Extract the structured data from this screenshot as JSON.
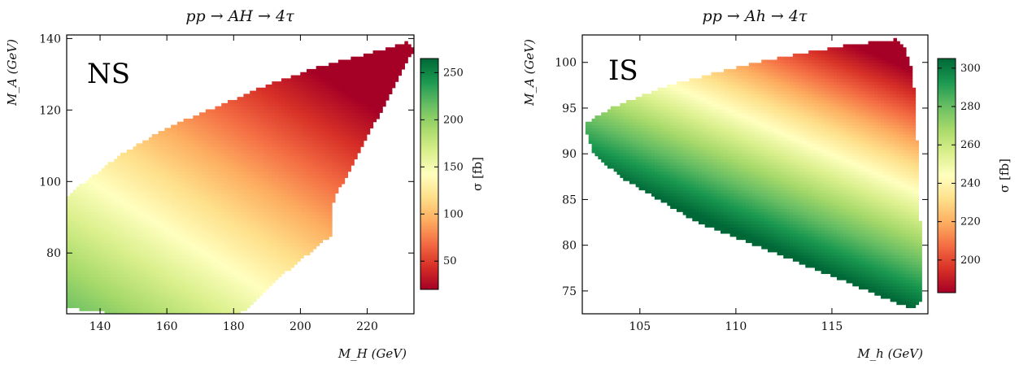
{
  "chart_data": [
    {
      "type": "heatmap",
      "title": "pp → AH → 4τ",
      "panel_label": "NS",
      "xlabel": "M_H (GeV)",
      "ylabel": "M_A (GeV)",
      "xlim": [
        130,
        234
      ],
      "ylim": [
        63,
        141
      ],
      "xticks": [
        140,
        160,
        180,
        200,
        220
      ],
      "yticks": [
        80,
        100,
        120,
        140
      ],
      "colorbar": {
        "label": "σ [fb]",
        "range": [
          20,
          265
        ],
        "ticks": [
          50,
          100,
          150,
          200,
          250
        ],
        "colormap": "RdYlGn",
        "low_color": "#a50026",
        "mid_color": "#ffffbf",
        "high_color": "#006837"
      },
      "region_outline": [
        [
          130,
          96
        ],
        [
          137,
          101
        ],
        [
          147,
          108
        ],
        [
          160,
          115
        ],
        [
          175,
          121
        ],
        [
          190,
          127
        ],
        [
          205,
          132
        ],
        [
          221,
          136
        ],
        [
          232,
          139
        ],
        [
          234,
          137
        ],
        [
          222,
          116
        ],
        [
          210,
          95
        ],
        [
          209,
          85
        ],
        [
          196,
          75
        ],
        [
          184,
          64
        ],
        [
          181,
          63
        ],
        [
          146,
          63
        ],
        [
          136,
          64
        ],
        [
          130,
          65
        ]
      ],
      "sigma_samples": [
        {
          "M_H": 132,
          "M_A": 67,
          "sigma": 260
        },
        {
          "M_H": 150,
          "M_A": 70,
          "sigma": 185
        },
        {
          "M_H": 165,
          "M_A": 72,
          "sigma": 145
        },
        {
          "M_H": 135,
          "M_A": 95,
          "sigma": 145
        },
        {
          "M_H": 160,
          "M_A": 100,
          "sigma": 100
        },
        {
          "M_H": 180,
          "M_A": 100,
          "sigma": 65
        },
        {
          "M_H": 200,
          "M_A": 110,
          "sigma": 45
        },
        {
          "M_H": 230,
          "M_A": 138,
          "sigma": 20
        }
      ]
    },
    {
      "type": "heatmap",
      "title": "pp → Ah → 4τ",
      "panel_label": "IS",
      "xlabel": "M_h (GeV)",
      "ylabel": "M_A (GeV)",
      "xlim": [
        102,
        120
      ],
      "ylim": [
        72.5,
        103
      ],
      "xticks": [
        105,
        110,
        115
      ],
      "yticks": [
        75,
        80,
        85,
        90,
        95,
        100
      ],
      "colorbar": {
        "label": "σ [fb]",
        "range": [
          183,
          305
        ],
        "ticks": [
          200,
          220,
          240,
          260,
          280,
          300
        ],
        "colormap": "RdYlGn",
        "low_color": "#a50026",
        "mid_color": "#ffffbf",
        "high_color": "#006837"
      },
      "region_outline": [
        [
          102.1,
          93.3
        ],
        [
          103.5,
          95.0
        ],
        [
          106.5,
          97.5
        ],
        [
          111,
          100
        ],
        [
          115.5,
          101.8
        ],
        [
          118.3,
          102.5
        ],
        [
          118.8,
          101.5
        ],
        [
          119.2,
          99
        ],
        [
          119.4,
          93
        ],
        [
          119.6,
          82
        ],
        [
          119.6,
          74
        ],
        [
          119.2,
          73
        ],
        [
          114,
          77.5
        ],
        [
          108,
          82.5
        ],
        [
          104,
          87.5
        ],
        [
          102.6,
          90
        ],
        [
          102.1,
          93
        ]
      ],
      "sigma_samples": [
        {
          "M_h": 102.5,
          "M_A": 93,
          "sigma": 300
        },
        {
          "M_h": 104,
          "M_A": 88,
          "sigma": 300
        },
        {
          "M_h": 106,
          "M_A": 96,
          "sigma": 245
        },
        {
          "M_h": 110,
          "M_A": 92,
          "sigma": 240
        },
        {
          "M_h": 113,
          "M_A": 100,
          "sigma": 200
        },
        {
          "M_h": 118,
          "M_A": 102,
          "sigma": 185
        },
        {
          "M_h": 119,
          "M_A": 75,
          "sigma": 300
        }
      ]
    }
  ]
}
